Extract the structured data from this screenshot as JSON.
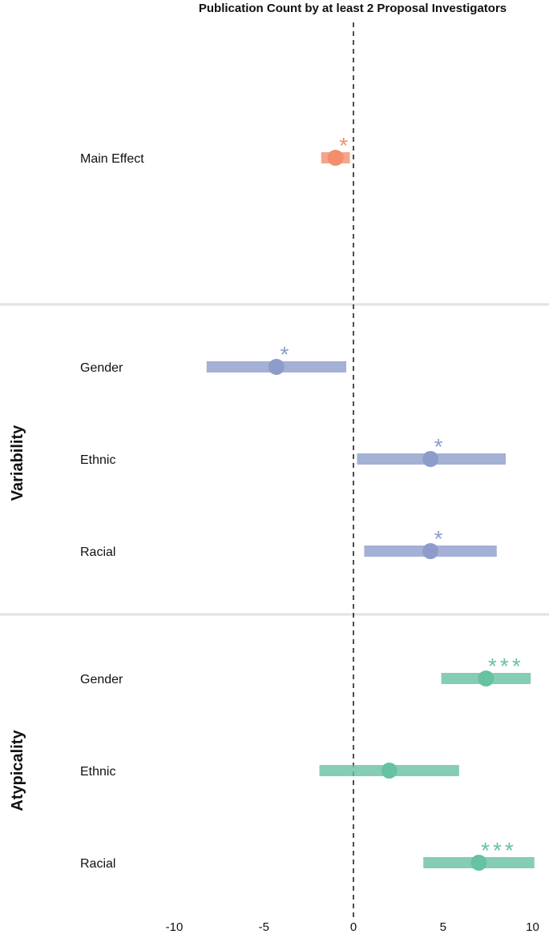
{
  "chart_data": {
    "type": "forest",
    "title": "Publication Count by at least 2 Proposal Investigators",
    "xlim": [
      -10,
      10
    ],
    "x_ticks": [
      "-10",
      "-5",
      "0",
      "5",
      "10"
    ],
    "x_tick_values": [
      -10,
      -5,
      0,
      5,
      10
    ],
    "reference_line": 0,
    "groups": [
      {
        "name": "",
        "color": "#F28E6B",
        "rows": [
          {
            "label": "Main Effect",
            "estimate": -1.0,
            "ci": [
              -1.8,
              -0.2
            ],
            "significance": "*"
          }
        ]
      },
      {
        "name": "Variability",
        "color": "#8E9CCB",
        "rows": [
          {
            "label": "Gender",
            "estimate": -4.3,
            "ci": [
              -8.2,
              -0.4
            ],
            "significance": "*"
          },
          {
            "label": "Ethnic",
            "estimate": 4.3,
            "ci": [
              0.2,
              8.5
            ],
            "significance": "*"
          },
          {
            "label": "Racial",
            "estimate": 4.3,
            "ci": [
              0.6,
              8.0
            ],
            "significance": "*"
          }
        ]
      },
      {
        "name": "Atypicality",
        "color": "#66C2A0",
        "rows": [
          {
            "label": "Gender",
            "estimate": 7.4,
            "ci": [
              4.9,
              9.9
            ],
            "significance": "***"
          },
          {
            "label": "Ethnic",
            "estimate": 2.0,
            "ci": [
              -1.9,
              5.9
            ],
            "significance": ""
          },
          {
            "label": "Racial",
            "estimate": 7.0,
            "ci": [
              3.9,
              10.1
            ],
            "significance": "***"
          }
        ]
      }
    ]
  }
}
